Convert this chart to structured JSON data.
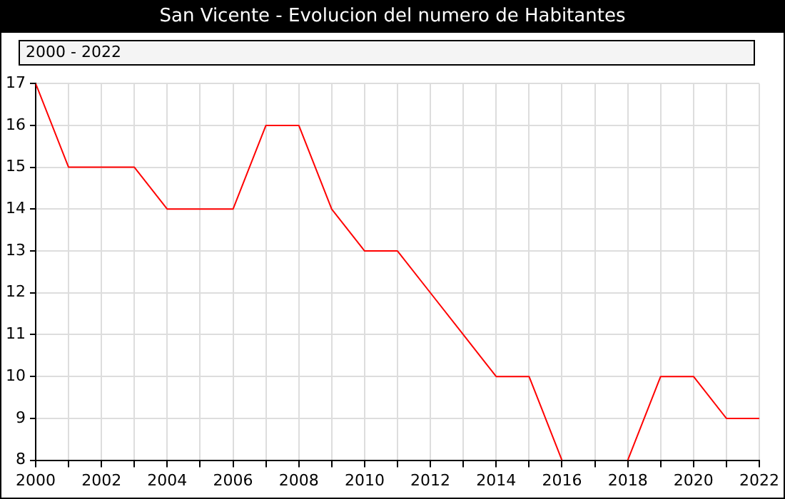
{
  "chart_data": {
    "type": "line",
    "title": "San Vicente - Evolucion del numero de Habitantes",
    "annotations": [
      "2000 - 2022"
    ],
    "x": [
      2000,
      2001,
      2002,
      2003,
      2004,
      2005,
      2006,
      2007,
      2008,
      2009,
      2010,
      2011,
      2012,
      2013,
      2014,
      2015,
      2016,
      2017,
      2018,
      2019,
      2020,
      2021,
      2022
    ],
    "series": [
      {
        "color": "#ff0000",
        "values": [
          17,
          15,
          15,
          15,
          14,
          14,
          14,
          16,
          16,
          14,
          13,
          13,
          12,
          11,
          10,
          10,
          8,
          null,
          8,
          10,
          10,
          9,
          9
        ]
      }
    ],
    "xlim": [
      2000,
      2022
    ],
    "xticks": [
      2000,
      {
        "value": 2001,
        "label": null
      },
      2002,
      {
        "value": 2003,
        "label": null
      },
      2004,
      {
        "value": 2005,
        "label": null
      },
      2006,
      {
        "value": 2007,
        "label": null
      },
      2008,
      {
        "value": 2009,
        "label": null
      },
      2010,
      {
        "value": 2011,
        "label": null
      },
      2012,
      {
        "value": 2013,
        "label": null
      },
      2014,
      {
        "value": 2015,
        "label": null
      },
      2016,
      {
        "value": 2017,
        "label": null
      },
      2018,
      {
        "value": 2019,
        "label": null
      },
      2020,
      {
        "value": 2021,
        "label": null
      },
      2022
    ],
    "ylim": [
      8,
      17
    ],
    "yticks": [
      8,
      9,
      10,
      11,
      12,
      13,
      14,
      15,
      16,
      17
    ],
    "grid": true,
    "legend": false,
    "marker": "none",
    "line_style": "solid"
  }
}
